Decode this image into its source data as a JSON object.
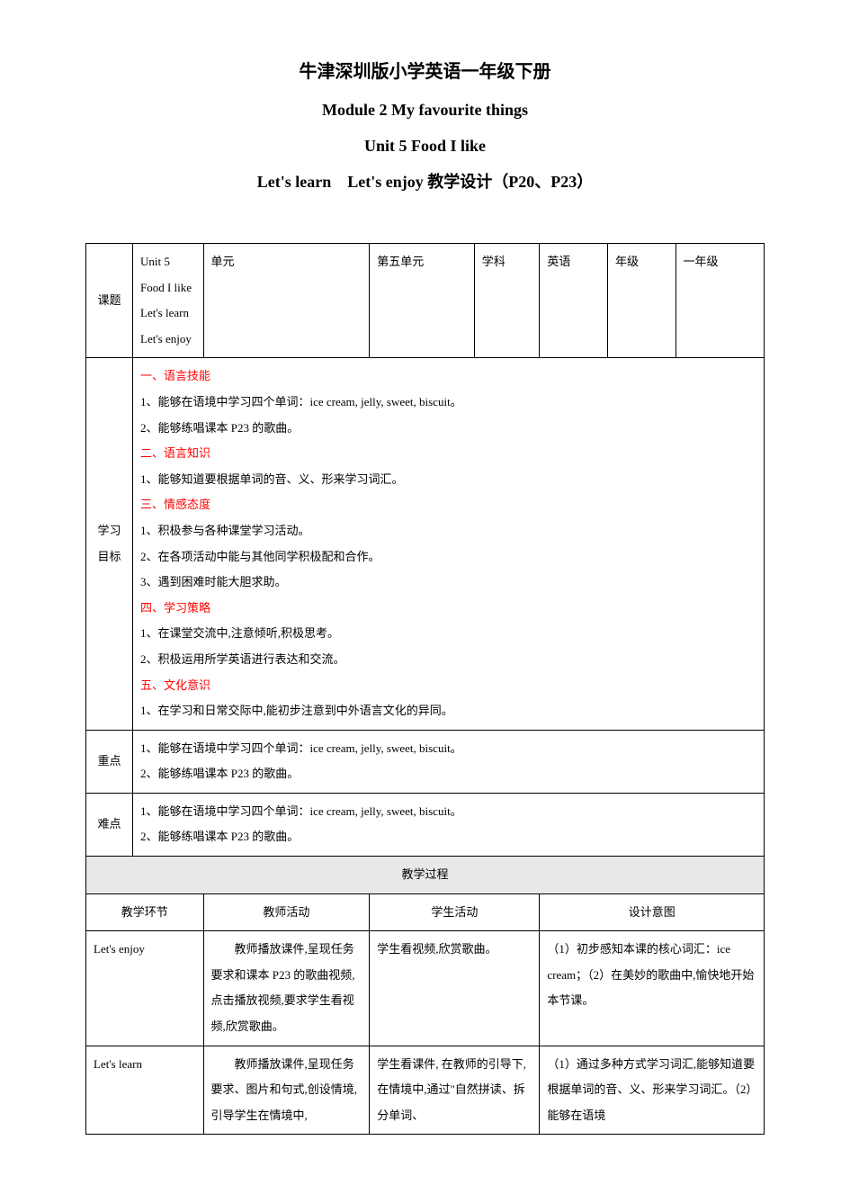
{
  "colors": {
    "text": "#000000",
    "accent_red": "#ff0000",
    "background": "#ffffff",
    "process_bg": "#e8e8e8",
    "border": "#000000"
  },
  "typography": {
    "title_fontsize": 20,
    "subtitle_fontsize": 18,
    "body_fontsize": 13,
    "font_family_cn": "SimSun",
    "font_family_en": "Times New Roman"
  },
  "title": {
    "line1": "牛津深圳版小学英语一年级下册",
    "line2": "Module 2 My favourite things",
    "line3": "Unit 5 Food I like",
    "line4": "Let's learn　Let's enjoy 教学设计（P20、P23）"
  },
  "header": {
    "topic_label": "课题",
    "topic_value": "Unit 5 Food I like\nLet's learn　Let's enjoy",
    "unit_label": "单元",
    "unit_value": "第五单元",
    "subject_label": "学科",
    "subject_value": "英语",
    "grade_label": "年级",
    "grade_value": "一年级"
  },
  "objectives": {
    "label": "学习目标",
    "sections": [
      {
        "heading": "一、语言技能",
        "items": [
          "1、能够在语境中学习四个单词：ice cream, jelly, sweet, biscuit。",
          "2、能够练唱课本 P23 的歌曲。"
        ]
      },
      {
        "heading": "二、语言知识",
        "items": [
          "1、能够知道要根据单词的音、义、形来学习词汇。"
        ]
      },
      {
        "heading": "三、情感态度",
        "items": [
          "1、积极参与各种课堂学习活动。",
          "2、在各项活动中能与其他同学积极配和合作。",
          "3、遇到困难时能大胆求助。"
        ]
      },
      {
        "heading": "四、学习策略",
        "items": [
          "1、在课堂交流中,注意倾听,积极思考。",
          "2、积极运用所学英语进行表达和交流。"
        ]
      },
      {
        "heading": "五、文化意识",
        "items": [
          "1、在学习和日常交际中,能初步注意到中外语言文化的异同。"
        ]
      }
    ]
  },
  "keypoints": {
    "label": "重点",
    "items": [
      "1、能够在语境中学习四个单词：ice cream, jelly, sweet, biscuit。",
      "2、能够练唱课本 P23 的歌曲。"
    ]
  },
  "difficulties": {
    "label": "难点",
    "items": [
      "1、能够在语境中学习四个单词：ice cream, jelly, sweet, biscuit。",
      "2、能够练唱课本 P23 的歌曲。"
    ]
  },
  "process": {
    "header": "教学过程",
    "cols": {
      "phase": "教学环节",
      "teacher": "教师活动",
      "student": "学生活动",
      "intent": "设计意图"
    },
    "rows": [
      {
        "phase": "Let's enjoy",
        "teacher": "　　教师播放课件,呈现任务要求和课本 P23 的歌曲视频,点击播放视频,要求学生看视频,欣赏歌曲。",
        "student": "学生看视频,欣赏歌曲。",
        "intent": "（1）初步感知本课的核心词汇：ice cream；（2）在美妙的歌曲中,愉快地开始本节课。"
      },
      {
        "phase": "Let's learn",
        "teacher": "　　教师播放课件,呈现任务要求、图片和句式,创设情境,引导学生在情境中,",
        "student": "学生看课件, 在教师的引导下, 在情境中,通过\"自然拼读、拆分单词、",
        "intent": "（1）通过多种方式学习词汇,能够知道要根据单词的音、义、形来学习词汇。（2）能够在语境"
      }
    ]
  }
}
